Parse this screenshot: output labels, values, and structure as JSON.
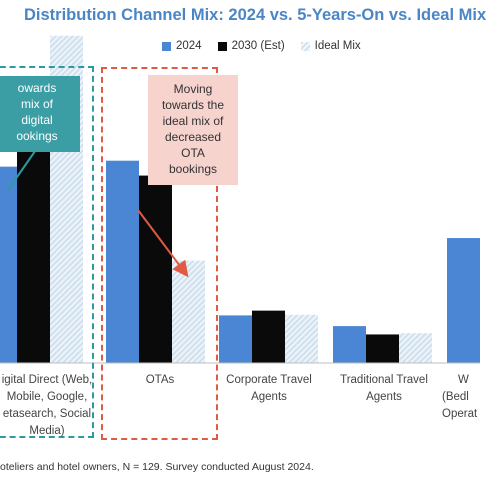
{
  "title": "Distribution Channel Mix: 2024 vs. 5-Years-On vs. Ideal Mix",
  "colors": {
    "s2024": "#4a86d4",
    "s2030": "#0a0a0a",
    "ideal": "#d4e4f2",
    "teal": "#3a9ea4",
    "pink": "#f6d3cd",
    "red_arrow": "#e05a45"
  },
  "legend": [
    {
      "label": "2024",
      "icon": "solid-blue-square"
    },
    {
      "label": "2030 (Est)",
      "icon": "solid-black-square"
    },
    {
      "label": "Ideal Mix",
      "icon": "light-hatched-square"
    }
  ],
  "callouts": {
    "left": [
      "owards",
      "mix of",
      "digital",
      "ookings"
    ],
    "right": [
      "Moving",
      "towards the",
      "ideal mix of",
      "decreased",
      "OTA",
      "bookings"
    ]
  },
  "footnote": "oteliers and hotel owners, N = 129. Survey conducted August 2024.",
  "chart_data": {
    "type": "bar",
    "categories": [
      [
        "igital Direct (Web,",
        "Mobile, Google,",
        "etasearch, Social",
        "Media)"
      ],
      [
        "OTAs"
      ],
      [
        "Corporate Travel",
        "Agents"
      ],
      [
        "Traditional Travel",
        "Agents"
      ],
      [
        "W",
        "(Bedl",
        "Operat"
      ]
    ],
    "series": [
      {
        "name": "2024",
        "values": [
          33,
          34,
          8,
          6.2,
          21
        ]
      },
      {
        "name": "2030 (Est)",
        "values": [
          38,
          31.5,
          8.8,
          4.8,
          null
        ]
      },
      {
        "name": "Ideal Mix",
        "values": [
          55,
          17.2,
          8.1,
          5,
          null
        ]
      }
    ],
    "ylim": [
      0,
      60
    ],
    "grid": false,
    "legend_position": "top"
  }
}
